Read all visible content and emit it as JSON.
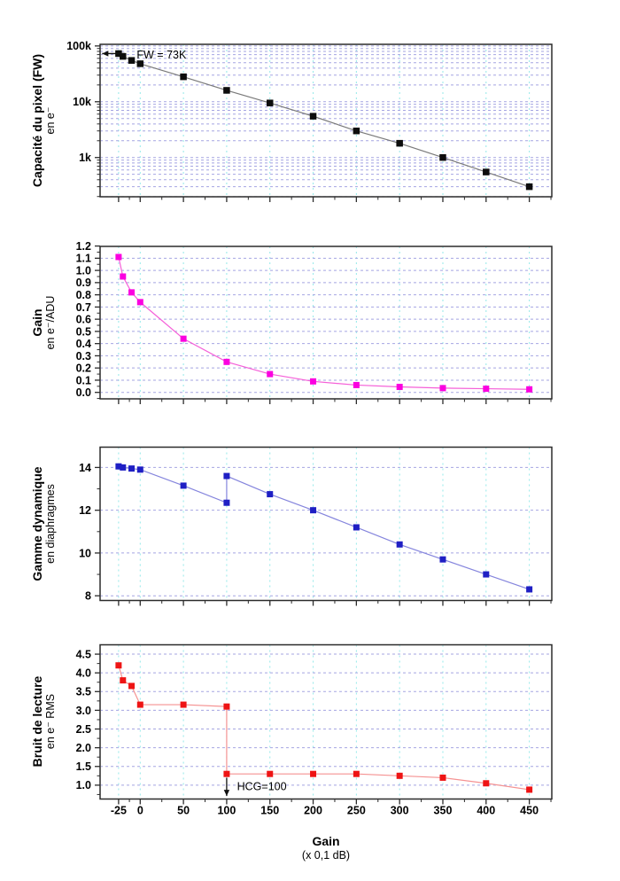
{
  "figure": {
    "xlabel_line1": "Gain",
    "xlabel_line2": "(x 0,1 dB)",
    "x_range": [
      -46.4,
      476
    ],
    "x_ticks": [
      -25,
      0,
      50,
      100,
      150,
      200,
      250,
      300,
      350,
      400,
      450
    ],
    "x_tick_labels": [
      "-25",
      "0",
      "50",
      "100",
      "150",
      "200",
      "250",
      "300",
      "350",
      "400",
      "450"
    ],
    "x_minor_ticks": [
      -12.5,
      25,
      75,
      125,
      175,
      225,
      275,
      325,
      375,
      425,
      475
    ],
    "colors": {
      "grid_h": "#a5a5e2",
      "grid_v": "#93e9e9",
      "frame": "#2b2b2b",
      "annotation": "#111111"
    }
  },
  "chart_data": [
    {
      "id": "full-well",
      "type": "line",
      "ylabel": "Capacité du pixel (FW)",
      "ylabel_sub": "en e⁻",
      "y_scale": "log",
      "y_range": [
        198,
        107000
      ],
      "y_ticks": [
        1000,
        10000,
        100000
      ],
      "y_tick_labels": [
        "1k",
        "10k",
        "100k"
      ],
      "marker_color": "#0d0d0d",
      "line_color": "#7a7a7a",
      "marker_size": 7.5,
      "x": [
        -25,
        -20,
        -10,
        0,
        50,
        100,
        150,
        200,
        250,
        300,
        350,
        400,
        450
      ],
      "y": [
        73000,
        65000,
        55000,
        48000,
        28000,
        16000,
        9500,
        5500,
        3000,
        1800,
        1000,
        550,
        300
      ],
      "annotations": [
        {
          "label": "FW = 73K",
          "label_x": -4,
          "label_y": 70000,
          "arrow_from": [
            -18,
            73000
          ],
          "arrow_to": [
            -44,
            73000
          ],
          "head": "left"
        }
      ]
    },
    {
      "id": "gain",
      "type": "line",
      "ylabel": "Gain",
      "ylabel_sub": "en e⁻/ADU",
      "y_scale": "linear",
      "y_range": [
        -0.053,
        1.197
      ],
      "y_minor_step": 0.05,
      "y_ticks": [
        0,
        0.1,
        0.2,
        0.3,
        0.4,
        0.5,
        0.6,
        0.7,
        0.8,
        0.9,
        1.0,
        1.1,
        1.2
      ],
      "y_tick_labels": [
        "0.0",
        "0.1",
        "0.2",
        "0.3",
        "0.4",
        "0.5",
        "0.6",
        "0.7",
        "0.8",
        "0.9",
        "1.0",
        "1.1",
        "1.2"
      ],
      "marker_color": "#fb00e0",
      "line_color": "#f55fd8",
      "marker_size": 7,
      "x": [
        -25,
        -20,
        -10,
        0,
        50,
        100,
        150,
        200,
        250,
        300,
        350,
        400,
        450
      ],
      "y": [
        1.11,
        0.95,
        0.82,
        0.74,
        0.44,
        0.25,
        0.15,
        0.09,
        0.06,
        0.045,
        0.035,
        0.03,
        0.025
      ],
      "annotations": []
    },
    {
      "id": "dynamic-range",
      "type": "line",
      "ylabel": "Gamme dynamique",
      "ylabel_sub": "en diaphragmes",
      "y_scale": "linear",
      "y_range": [
        7.78,
        14.95
      ],
      "y_minor_step": 1,
      "y_ticks": [
        8,
        10,
        12,
        14
      ],
      "y_tick_labels": [
        "8",
        "10",
        "12",
        "14"
      ],
      "marker_color": "#1f1fc4",
      "line_color": "#8585dd",
      "marker_size": 7,
      "x": [
        -25,
        -20,
        -10,
        0,
        50,
        100,
        100,
        150,
        200,
        250,
        300,
        350,
        400,
        450
      ],
      "y": [
        14.05,
        14.0,
        13.95,
        13.9,
        13.15,
        12.35,
        13.6,
        12.75,
        12.0,
        11.2,
        10.4,
        9.7,
        9.0,
        8.3
      ],
      "annotations": []
    },
    {
      "id": "read-noise",
      "type": "line",
      "ylabel": "Bruit de lecture",
      "ylabel_sub": "en e⁻ RMS",
      "y_scale": "linear",
      "y_range": [
        0.63,
        4.75
      ],
      "y_minor_step": 0.25,
      "y_ticks": [
        1.0,
        1.5,
        2.0,
        2.5,
        3.0,
        3.5,
        4.0,
        4.5
      ],
      "y_tick_labels": [
        "1.0",
        "1.5",
        "2.0",
        "2.5",
        "3.0",
        "3.5",
        "4.0",
        "4.5"
      ],
      "marker_color": "#ee1414",
      "line_color": "#f59292",
      "marker_size": 7,
      "show_x_labels": true,
      "x": [
        -25,
        -20,
        -10,
        0,
        50,
        100,
        100,
        150,
        200,
        250,
        300,
        350,
        400,
        450
      ],
      "y": [
        4.2,
        3.8,
        3.65,
        3.15,
        3.15,
        3.1,
        1.3,
        1.3,
        1.3,
        1.3,
        1.25,
        1.2,
        1.05,
        0.88
      ],
      "annotations": [
        {
          "label": "HCG=100",
          "label_x": 112,
          "label_y": 0.97,
          "arrow_from": [
            100,
            1.2
          ],
          "arrow_to": [
            100,
            0.71
          ],
          "head": "down"
        }
      ]
    }
  ]
}
